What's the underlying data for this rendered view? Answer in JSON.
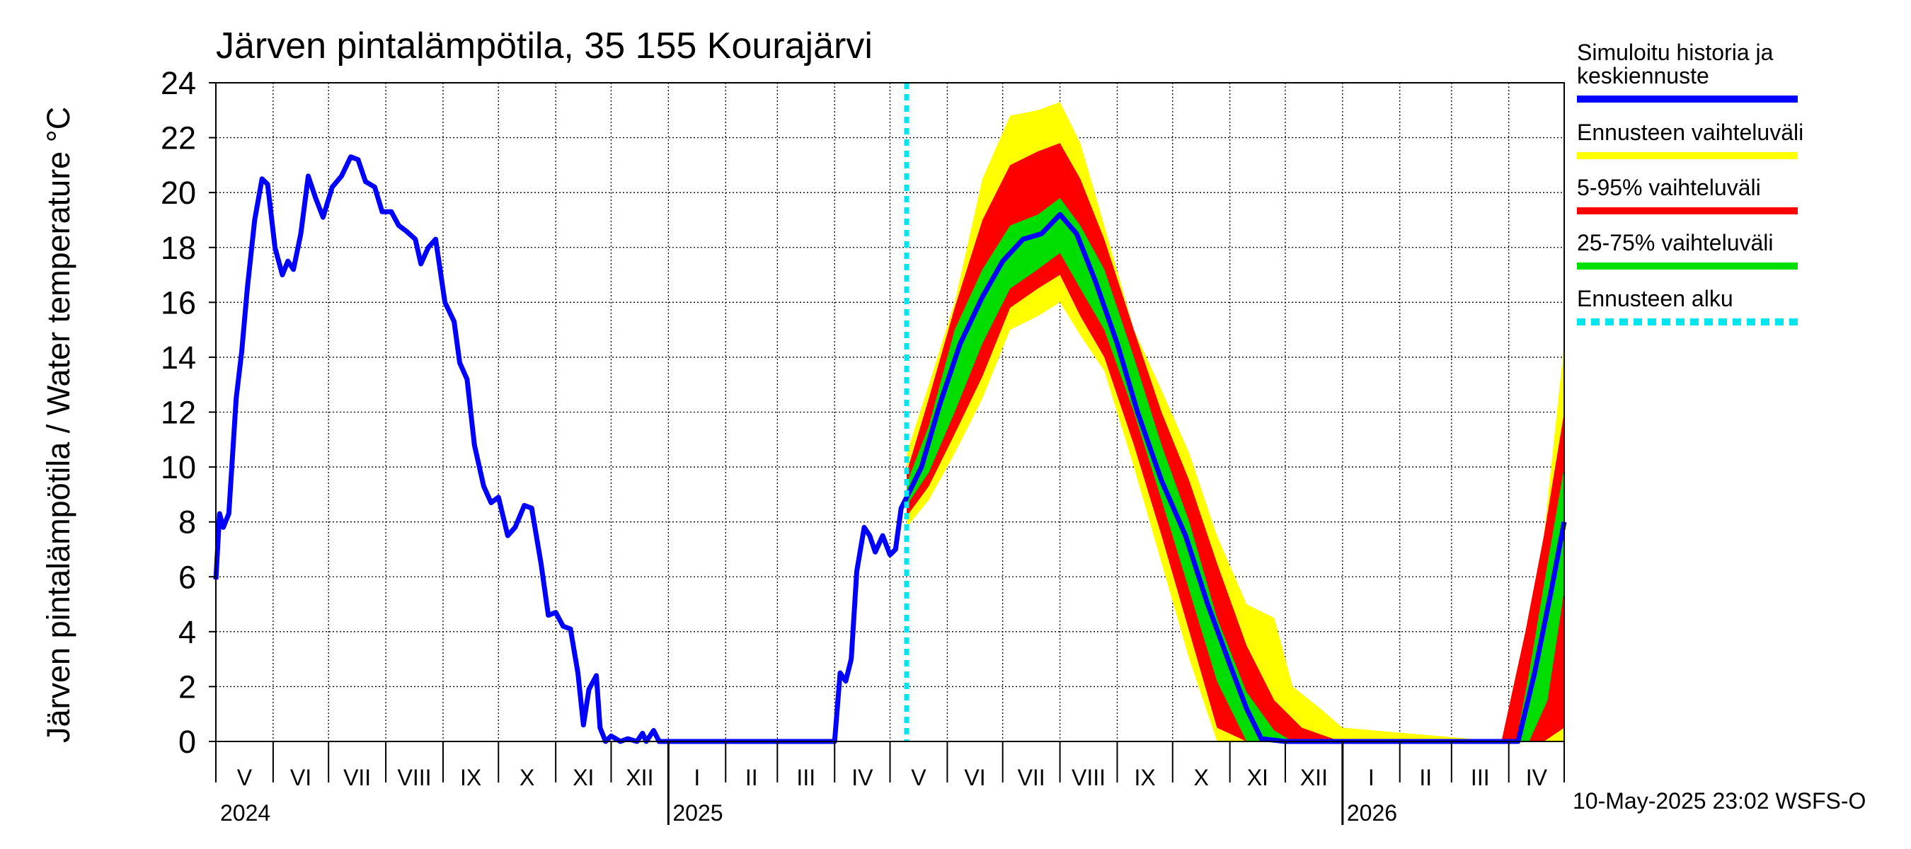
{
  "chart_data": {
    "type": "area",
    "title": "Järven pintalämpötila, 35 155 Kourajärvi",
    "ylabel": "Järven pintalämpötila / Water temperature °C",
    "ylim": [
      0,
      24
    ],
    "yticks": [
      0,
      2,
      4,
      6,
      8,
      10,
      12,
      14,
      16,
      18,
      20,
      22,
      24
    ],
    "xlim": [
      "2024-05-01",
      "2026-05-01"
    ],
    "month_labels": [
      "V",
      "VI",
      "VII",
      "VIII",
      "IX",
      "X",
      "XI",
      "XII",
      "I",
      "II",
      "III",
      "IV",
      "V",
      "VI",
      "VII",
      "VIII",
      "IX",
      "X",
      "XI",
      "XII",
      "I",
      "II",
      "III",
      "IV"
    ],
    "year_labels": [
      {
        "label": "2024",
        "date": "2024-05-01"
      },
      {
        "label": "2025",
        "date": "2025-01-01"
      },
      {
        "label": "2026",
        "date": "2026-01-01"
      }
    ],
    "forecast_start": "2025-05-10",
    "timestamp": "10-May-2025 23:02 WSFS-O",
    "legend": [
      {
        "label": "Simuloitu historia ja keskiennuste",
        "color": "#0000ff",
        "style": "solid"
      },
      {
        "label": "Ennusteen vaihteluväli",
        "color": "#ffff00",
        "style": "solid"
      },
      {
        "label": "5-95% vaihteluväli",
        "color": "#ff0000",
        "style": "solid"
      },
      {
        "label": "25-75% vaihteluväli",
        "color": "#00dd00",
        "style": "solid"
      },
      {
        "label": "Ennusteen alku",
        "color": "#00e5ee",
        "style": "dotted"
      }
    ],
    "series": [
      {
        "name": "Simuloitu historia ja keskiennuste",
        "points": [
          [
            "2024-05-01",
            5.9
          ],
          [
            "2024-05-03",
            8.3
          ],
          [
            "2024-05-05",
            7.8
          ],
          [
            "2024-05-08",
            8.3
          ],
          [
            "2024-05-12",
            12.5
          ],
          [
            "2024-05-15",
            14.2
          ],
          [
            "2024-05-18",
            16.5
          ],
          [
            "2024-05-22",
            19.0
          ],
          [
            "2024-05-26",
            20.5
          ],
          [
            "2024-05-29",
            20.3
          ],
          [
            "2024-06-02",
            18.0
          ],
          [
            "2024-06-06",
            17.0
          ],
          [
            "2024-06-09",
            17.5
          ],
          [
            "2024-06-12",
            17.2
          ],
          [
            "2024-06-16",
            18.5
          ],
          [
            "2024-06-20",
            20.6
          ],
          [
            "2024-06-24",
            19.8
          ],
          [
            "2024-06-28",
            19.1
          ],
          [
            "2024-07-03",
            20.2
          ],
          [
            "2024-07-08",
            20.6
          ],
          [
            "2024-07-13",
            21.3
          ],
          [
            "2024-07-17",
            21.2
          ],
          [
            "2024-07-21",
            20.4
          ],
          [
            "2024-07-26",
            20.2
          ],
          [
            "2024-07-30",
            19.3
          ],
          [
            "2024-08-04",
            19.3
          ],
          [
            "2024-08-08",
            18.8
          ],
          [
            "2024-08-12",
            18.6
          ],
          [
            "2024-08-17",
            18.3
          ],
          [
            "2024-08-20",
            17.4
          ],
          [
            "2024-08-24",
            18.0
          ],
          [
            "2024-08-28",
            18.3
          ],
          [
            "2024-09-02",
            16.0
          ],
          [
            "2024-09-07",
            15.3
          ],
          [
            "2024-09-10",
            13.8
          ],
          [
            "2024-09-14",
            13.2
          ],
          [
            "2024-09-18",
            10.8
          ],
          [
            "2024-09-23",
            9.3
          ],
          [
            "2024-09-27",
            8.7
          ],
          [
            "2024-10-01",
            8.9
          ],
          [
            "2024-10-06",
            7.5
          ],
          [
            "2024-10-10",
            7.8
          ],
          [
            "2024-10-15",
            8.6
          ],
          [
            "2024-10-19",
            8.5
          ],
          [
            "2024-10-24",
            6.5
          ],
          [
            "2024-10-28",
            4.6
          ],
          [
            "2024-11-01",
            4.7
          ],
          [
            "2024-11-05",
            4.2
          ],
          [
            "2024-11-09",
            4.1
          ],
          [
            "2024-11-13",
            2.5
          ],
          [
            "2024-11-16",
            0.6
          ],
          [
            "2024-11-19",
            1.9
          ],
          [
            "2024-11-23",
            2.4
          ],
          [
            "2024-11-25",
            0.5
          ],
          [
            "2024-11-28",
            0.0
          ],
          [
            "2024-12-01",
            0.2
          ],
          [
            "2024-12-06",
            0.0
          ],
          [
            "2024-12-10",
            0.1
          ],
          [
            "2024-12-15",
            0.0
          ],
          [
            "2024-12-18",
            0.3
          ],
          [
            "2024-12-20",
            0.0
          ],
          [
            "2024-12-24",
            0.4
          ],
          [
            "2024-12-27",
            0.0
          ],
          [
            "2025-01-15",
            0.0
          ],
          [
            "2025-02-15",
            0.0
          ],
          [
            "2025-03-15",
            0.0
          ],
          [
            "2025-04-01",
            0.0
          ],
          [
            "2025-04-04",
            2.5
          ],
          [
            "2025-04-07",
            2.2
          ],
          [
            "2025-04-10",
            3.0
          ],
          [
            "2025-04-13",
            6.2
          ],
          [
            "2025-04-17",
            7.8
          ],
          [
            "2025-04-20",
            7.5
          ],
          [
            "2025-04-23",
            6.9
          ],
          [
            "2025-04-27",
            7.5
          ],
          [
            "2025-05-01",
            6.8
          ],
          [
            "2025-05-04",
            7.0
          ],
          [
            "2025-05-07",
            8.5
          ],
          [
            "2025-05-10",
            8.9
          ],
          [
            "2025-05-18",
            10.0
          ],
          [
            "2025-05-28",
            12.3
          ],
          [
            "2025-06-08",
            14.5
          ],
          [
            "2025-06-20",
            16.2
          ],
          [
            "2025-07-01",
            17.5
          ],
          [
            "2025-07-12",
            18.3
          ],
          [
            "2025-07-22",
            18.5
          ],
          [
            "2025-08-01",
            19.2
          ],
          [
            "2025-08-10",
            18.5
          ],
          [
            "2025-08-20",
            16.8
          ],
          [
            "2025-09-01",
            14.5
          ],
          [
            "2025-09-12",
            12.0
          ],
          [
            "2025-09-25",
            9.5
          ],
          [
            "2025-10-08",
            7.5
          ],
          [
            "2025-10-20",
            5.0
          ],
          [
            "2025-11-01",
            2.8
          ],
          [
            "2025-11-10",
            1.2
          ],
          [
            "2025-11-18",
            0.1
          ],
          [
            "2025-12-01",
            0.0
          ],
          [
            "2026-01-15",
            0.0
          ],
          [
            "2026-03-15",
            0.0
          ],
          [
            "2026-04-06",
            0.0
          ],
          [
            "2026-04-15",
            2.5
          ],
          [
            "2026-04-24",
            5.5
          ],
          [
            "2026-05-01",
            8.0
          ]
        ]
      },
      {
        "name": "Ennusteen vaihteluväli",
        "band": [
          [
            "2025-05-10",
            7.8,
            10.5
          ],
          [
            "2025-05-22",
            8.8,
            13.0
          ],
          [
            "2025-06-05",
            10.5,
            16.0
          ],
          [
            "2025-06-20",
            12.5,
            20.5
          ],
          [
            "2025-07-05",
            15.0,
            22.8
          ],
          [
            "2025-07-20",
            15.5,
            23.0
          ],
          [
            "2025-08-01",
            16.0,
            23.3
          ],
          [
            "2025-08-12",
            14.8,
            21.8
          ],
          [
            "2025-08-25",
            13.5,
            18.8
          ],
          [
            "2025-09-10",
            10.0,
            15.0
          ],
          [
            "2025-09-25",
            6.5,
            12.8
          ],
          [
            "2025-10-10",
            3.0,
            10.5
          ],
          [
            "2025-10-25",
            0.0,
            7.5
          ],
          [
            "2025-11-10",
            0.0,
            5.0
          ],
          [
            "2025-11-25",
            0.0,
            4.5
          ],
          [
            "2025-12-05",
            0.0,
            2.0
          ],
          [
            "2025-12-20",
            0.0,
            1.2
          ],
          [
            "2026-01-01",
            0.0,
            0.5
          ],
          [
            "2026-03-28",
            0.0,
            0.0
          ],
          [
            "2026-04-10",
            0.0,
            4.0
          ],
          [
            "2026-04-20",
            0.0,
            7.5
          ],
          [
            "2026-05-01",
            0.0,
            14.5
          ]
        ]
      },
      {
        "name": "5-95% vaihteluväli",
        "band": [
          [
            "2025-05-10",
            8.2,
            9.8
          ],
          [
            "2025-05-22",
            9.3,
            12.5
          ],
          [
            "2025-06-05",
            11.2,
            15.8
          ],
          [
            "2025-06-20",
            13.3,
            19.0
          ],
          [
            "2025-07-05",
            15.8,
            21.0
          ],
          [
            "2025-07-20",
            16.5,
            21.5
          ],
          [
            "2025-08-01",
            17.0,
            21.8
          ],
          [
            "2025-08-12",
            15.5,
            20.5
          ],
          [
            "2025-08-25",
            14.0,
            18.3
          ],
          [
            "2025-09-10",
            10.8,
            15.0
          ],
          [
            "2025-09-25",
            7.5,
            12.0
          ],
          [
            "2025-10-10",
            4.0,
            9.5
          ],
          [
            "2025-10-25",
            0.5,
            6.5
          ],
          [
            "2025-11-10",
            0.0,
            3.5
          ],
          [
            "2025-11-25",
            0.0,
            1.5
          ],
          [
            "2025-12-10",
            0.0,
            0.5
          ],
          [
            "2025-12-31",
            0.0,
            0.0
          ],
          [
            "2026-03-28",
            0.0,
            0.0
          ],
          [
            "2026-04-10",
            0.0,
            4.0
          ],
          [
            "2026-04-20",
            0.0,
            7.5
          ],
          [
            "2026-05-01",
            0.5,
            12.0
          ]
        ]
      },
      {
        "name": "25-75% vaihteluväli",
        "band": [
          [
            "2025-05-10",
            8.6,
            9.4
          ],
          [
            "2025-05-22",
            9.8,
            11.5
          ],
          [
            "2025-06-05",
            12.0,
            15.0
          ],
          [
            "2025-06-20",
            14.5,
            17.2
          ],
          [
            "2025-07-05",
            16.5,
            18.8
          ],
          [
            "2025-07-20",
            17.2,
            19.2
          ],
          [
            "2025-08-01",
            17.8,
            19.8
          ],
          [
            "2025-08-12",
            16.5,
            18.8
          ],
          [
            "2025-08-25",
            15.0,
            17.2
          ],
          [
            "2025-09-10",
            12.0,
            14.0
          ],
          [
            "2025-09-25",
            8.8,
            10.8
          ],
          [
            "2025-10-10",
            5.5,
            8.0
          ],
          [
            "2025-10-25",
            2.2,
            4.5
          ],
          [
            "2025-11-10",
            0.0,
            1.8
          ],
          [
            "2025-11-25",
            0.0,
            0.4
          ],
          [
            "2025-12-05",
            0.0,
            0.0
          ],
          [
            "2026-04-05",
            0.0,
            0.0
          ],
          [
            "2026-04-12",
            0.0,
            2.5
          ],
          [
            "2026-04-22",
            1.5,
            6.5
          ],
          [
            "2026-05-01",
            5.5,
            10.0
          ]
        ]
      }
    ]
  }
}
